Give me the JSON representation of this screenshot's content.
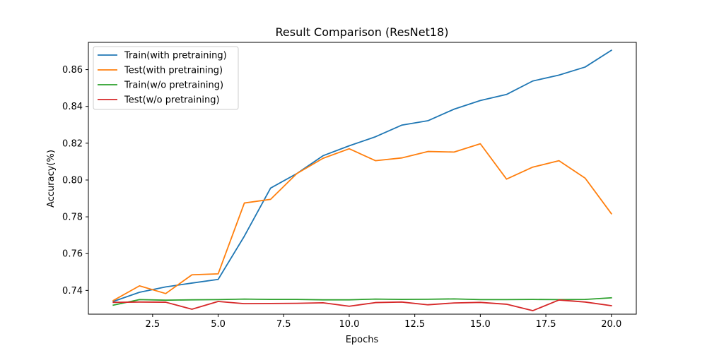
{
  "chart_data": {
    "type": "line",
    "title": "Result Comparison (ResNet18)",
    "xlabel": "Epochs",
    "ylabel": "Accuracy(%)",
    "xlim": [
      0.05,
      20.95
    ],
    "ylim": [
      0.7271,
      0.8748
    ],
    "x_ticks": [
      2.5,
      5.0,
      7.5,
      10.0,
      12.5,
      15.0,
      17.5,
      20.0
    ],
    "x_tick_labels": [
      "2.5",
      "5.0",
      "7.5",
      "10.0",
      "12.5",
      "15.0",
      "17.5",
      "20.0"
    ],
    "y_ticks": [
      0.74,
      0.76,
      0.78,
      0.8,
      0.82,
      0.84,
      0.86
    ],
    "y_tick_labels": [
      "0.74",
      "0.76",
      "0.78",
      "0.80",
      "0.82",
      "0.84",
      "0.86"
    ],
    "grid": false,
    "legend_position": "upper-left",
    "x": [
      1,
      2,
      3,
      4,
      5,
      6,
      7,
      8,
      9,
      10,
      11,
      12,
      13,
      14,
      15,
      16,
      17,
      18,
      19,
      20
    ],
    "series": [
      {
        "name": "Train(with pretraining)",
        "color": "#1f77b4",
        "values": [
          0.734,
          0.739,
          0.7419,
          0.744,
          0.746,
          0.7695,
          0.7956,
          0.8035,
          0.8132,
          0.8186,
          0.8235,
          0.8298,
          0.8322,
          0.8385,
          0.8432,
          0.8465,
          0.8538,
          0.857,
          0.8614,
          0.8705
        ]
      },
      {
        "name": "Test(with pretraining)",
        "color": "#ff7f0e",
        "values": [
          0.7345,
          0.7425,
          0.7383,
          0.7485,
          0.749,
          0.7875,
          0.7895,
          0.8035,
          0.8118,
          0.817,
          0.8105,
          0.812,
          0.8155,
          0.8152,
          0.8197,
          0.8005,
          0.807,
          0.8105,
          0.801,
          0.7817
        ]
      },
      {
        "name": "Train(w/o pretraining)",
        "color": "#2ca02c",
        "values": [
          0.732,
          0.735,
          0.7347,
          0.7349,
          0.735,
          0.7353,
          0.7351,
          0.7351,
          0.7349,
          0.7349,
          0.7353,
          0.7351,
          0.7352,
          0.7354,
          0.735,
          0.735,
          0.7351,
          0.735,
          0.7351,
          0.736
        ]
      },
      {
        "name": "Test(w/o pretraining)",
        "color": "#d62728",
        "values": [
          0.7335,
          0.7337,
          0.7336,
          0.7298,
          0.734,
          0.7328,
          0.7329,
          0.733,
          0.7333,
          0.7314,
          0.7334,
          0.7337,
          0.7322,
          0.7332,
          0.7335,
          0.7325,
          0.729,
          0.7348,
          0.7337,
          0.7317
        ]
      }
    ]
  }
}
